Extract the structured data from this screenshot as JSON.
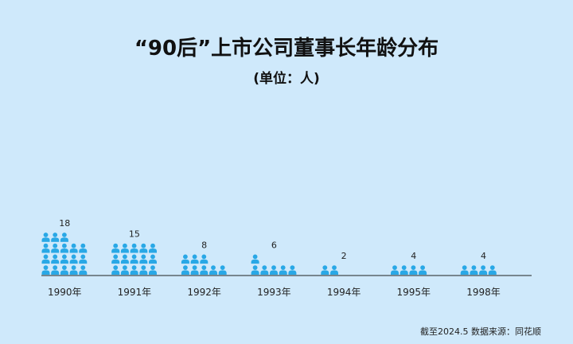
{
  "title": "“90后”上市公司董事长年龄分布",
  "subtitle": "(单位：人)",
  "source": "截至2024.5   数据来源：同花顺",
  "colors": {
    "background": "#cfe9fb",
    "icon": "#29a8e6",
    "axis": "#222222"
  },
  "icon_name": "person-icon",
  "chart_data": {
    "type": "bar",
    "title": "“90后”上市公司董事长年龄分布",
    "subtitle": "(单位：人)",
    "unit": "人",
    "categories": [
      "1990年",
      "1991年",
      "1992年",
      "1993年",
      "1994年",
      "1995年",
      "1998年"
    ],
    "values": [
      18,
      15,
      8,
      6,
      2,
      4,
      4
    ],
    "data_labels": [
      "18",
      "15",
      "8",
      "6",
      "2",
      "4",
      "4"
    ],
    "xlabel": "",
    "ylabel": "",
    "legend": "none",
    "grid": false
  }
}
